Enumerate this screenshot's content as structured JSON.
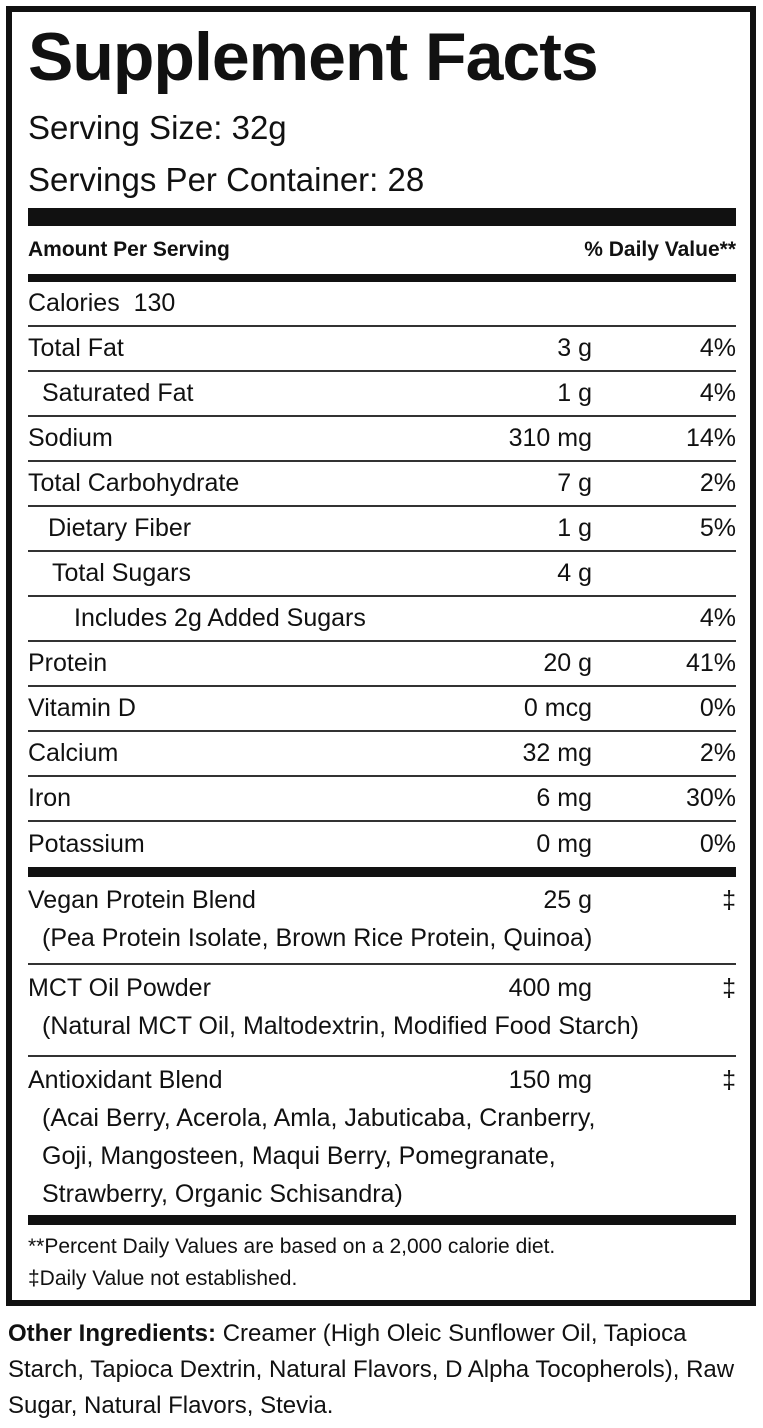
{
  "header": {
    "title": "Supplement Facts",
    "serving_size": "Serving Size: 32g",
    "servings_per_container": "Servings Per Container: 28"
  },
  "table": {
    "column_headers": [
      "Amount Per Serving",
      "% Daily Value**"
    ],
    "rows": [
      {
        "name": "Calories",
        "amount": "130"
      },
      {
        "name": "Total Fat",
        "amount": "3 g",
        "dv": "4%"
      },
      {
        "name": "Saturated Fat",
        "amount": "1 g",
        "dv": "4%"
      },
      {
        "name": "Sodium",
        "amount": "310 mg",
        "dv": "14%"
      },
      {
        "name": "Total Carbohydrate",
        "amount": "7 g",
        "dv": "2%"
      },
      {
        "name": "Dietary Fiber",
        "amount": "1 g",
        "dv": "5%"
      },
      {
        "name": "Total Sugars",
        "amount": "4 g"
      },
      {
        "name": "Includes 2g Added Sugars",
        "dv": "4%"
      },
      {
        "name": "Protein",
        "amount": "20 g",
        "dv": "41%"
      },
      {
        "name": "Vitamin D",
        "amount": "0 mcg",
        "dv": "0%"
      },
      {
        "name": "Calcium",
        "amount": "32 mg",
        "dv": "2%"
      },
      {
        "name": "Iron",
        "amount": "6 mg",
        "dv": "30%"
      },
      {
        "name": "Potassium",
        "amount": "0 mg",
        "dv": "0%"
      }
    ],
    "blends": [
      {
        "name": "Vegan Protein Blend",
        "amount": "25 g",
        "dv": "‡",
        "ingredients": [
          "(Pea Protein Isolate, Brown Rice Protein, Quinoa)"
        ]
      },
      {
        "name": "MCT Oil Powder",
        "amount": "400 mg",
        "dv": "‡",
        "ingredients": [
          "(Natural MCT Oil, Maltodextrin, Modified Food Starch)"
        ]
      },
      {
        "name": "Antioxidant Blend",
        "amount": "150 mg",
        "dv": "‡",
        "ingredients": [
          "(Acai Berry, Acerola, Amla, Jabuticaba, Cranberry,",
          "Goji, Mangosteen, Maqui Berry, Pomegranate,",
          "Strawberry, Organic Schisandra)"
        ]
      }
    ],
    "footnotes": [
      "**Percent Daily Values are based on a 2,000 calorie diet.",
      "‡Daily Value not established."
    ]
  },
  "other_ingredients": {
    "label": "Other Ingredients:",
    "text": "Creamer (High Oleic Sunflower Oil, Tapioca Starch, Tapioca Dextrin, Natural Flavors, D Alpha Tocopherols), Raw Sugar, Natural Flavors, Stevia."
  }
}
